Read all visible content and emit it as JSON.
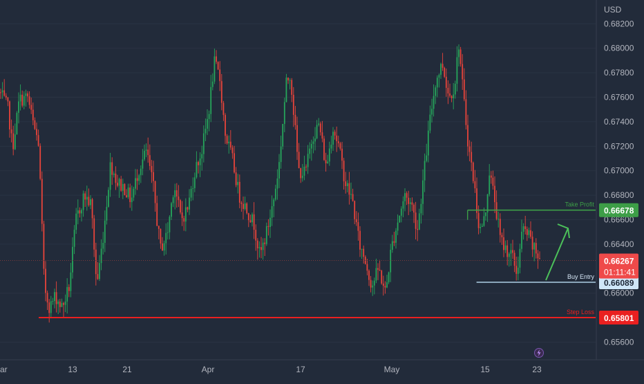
{
  "chart": {
    "currency": "USD",
    "colors": {
      "background": "#222b3a",
      "up": "#26a65b",
      "down": "#e8443a",
      "axis_text": "#b2b5be",
      "take_profit": "#3d9e47",
      "buy_entry": "#bcdff6",
      "stop_loss": "#ea2020",
      "last_price": "#ef4a4a",
      "arrow": "#4cc15a"
    }
  },
  "chart_data": {
    "type": "candlestick",
    "y_axis": {
      "ylim": [
        0.6549,
        0.6836
      ],
      "ticks": [
        "0.68200",
        "0.68000",
        "0.67800",
        "0.67600",
        "0.67400",
        "0.67200",
        "0.67000",
        "0.66800",
        "0.66600",
        "0.66400",
        "0.66000",
        "0.65600"
      ]
    },
    "x_axis": {
      "ticks": [
        "ar",
        "13",
        "21",
        "Apr",
        "17",
        "May",
        "15",
        "23"
      ]
    },
    "price_path": [
      [
        0,
        0.6764
      ],
      [
        12,
        0.675
      ],
      [
        18,
        0.6718
      ],
      [
        28,
        0.6758
      ],
      [
        40,
        0.676
      ],
      [
        48,
        0.6738
      ],
      [
        56,
        0.6722
      ],
      [
        64,
        0.6606
      ],
      [
        72,
        0.6588
      ],
      [
        80,
        0.6598
      ],
      [
        90,
        0.6588
      ],
      [
        100,
        0.6605
      ],
      [
        110,
        0.666
      ],
      [
        122,
        0.668
      ],
      [
        132,
        0.6672
      ],
      [
        140,
        0.6606
      ],
      [
        150,
        0.665
      ],
      [
        160,
        0.6706
      ],
      [
        170,
        0.669
      ],
      [
        180,
        0.6686
      ],
      [
        190,
        0.6676
      ],
      [
        200,
        0.67
      ],
      [
        212,
        0.6716
      ],
      [
        222,
        0.6686
      ],
      [
        232,
        0.6636
      ],
      [
        242,
        0.6648
      ],
      [
        252,
        0.669
      ],
      [
        262,
        0.666
      ],
      [
        272,
        0.667
      ],
      [
        282,
        0.67
      ],
      [
        292,
        0.6716
      ],
      [
        302,
        0.6748
      ],
      [
        310,
        0.6788
      ],
      [
        318,
        0.6776
      ],
      [
        326,
        0.673
      ],
      [
        336,
        0.671
      ],
      [
        346,
        0.668
      ],
      [
        356,
        0.667
      ],
      [
        368,
        0.6656
      ],
      [
        376,
        0.663
      ],
      [
        386,
        0.665
      ],
      [
        396,
        0.6676
      ],
      [
        404,
        0.6706
      ],
      [
        414,
        0.677
      ],
      [
        420,
        0.678
      ],
      [
        426,
        0.6742
      ],
      [
        432,
        0.67
      ],
      [
        442,
        0.6698
      ],
      [
        452,
        0.6728
      ],
      [
        462,
        0.6738
      ],
      [
        472,
        0.6702
      ],
      [
        482,
        0.6736
      ],
      [
        490,
        0.672
      ],
      [
        500,
        0.669
      ],
      [
        510,
        0.6676
      ],
      [
        520,
        0.664
      ],
      [
        528,
        0.6628
      ],
      [
        538,
        0.6606
      ],
      [
        548,
        0.662
      ],
      [
        558,
        0.66
      ],
      [
        566,
        0.6636
      ],
      [
        576,
        0.666
      ],
      [
        586,
        0.668
      ],
      [
        596,
        0.6672
      ],
      [
        604,
        0.6652
      ],
      [
        614,
        0.67
      ],
      [
        622,
        0.674
      ],
      [
        630,
        0.6772
      ],
      [
        640,
        0.6788
      ],
      [
        650,
        0.676
      ],
      [
        658,
        0.677
      ],
      [
        664,
        0.6804
      ],
      [
        670,
        0.6764
      ],
      [
        678,
        0.672
      ],
      [
        686,
        0.669
      ],
      [
        694,
        0.665
      ],
      [
        702,
        0.6662
      ],
      [
        708,
        0.67
      ],
      [
        716,
        0.6676
      ],
      [
        724,
        0.6644
      ],
      [
        732,
        0.6636
      ],
      [
        740,
        0.6632
      ],
      [
        748,
        0.6616
      ],
      [
        756,
        0.6652
      ],
      [
        764,
        0.6648
      ],
      [
        772,
        0.6636
      ],
      [
        782,
        0.6628
      ]
    ],
    "levels": {
      "take_profit": {
        "label": "Take Profit",
        "price_label": "0.66678",
        "value": 0.66678,
        "start_x_frac": 0.785
      },
      "buy_entry": {
        "label": "Buy Entry",
        "price_label": "0.66089",
        "value": 0.66089,
        "start_x_frac": 0.8
      },
      "stop_loss": {
        "label": "Step Loss",
        "price_label": "0.65801",
        "value": 0.65801,
        "start_x_frac": 0.065
      }
    },
    "last_price": {
      "value": 0.66267,
      "price_label": "0.66267",
      "countdown": "01:11:41"
    }
  }
}
